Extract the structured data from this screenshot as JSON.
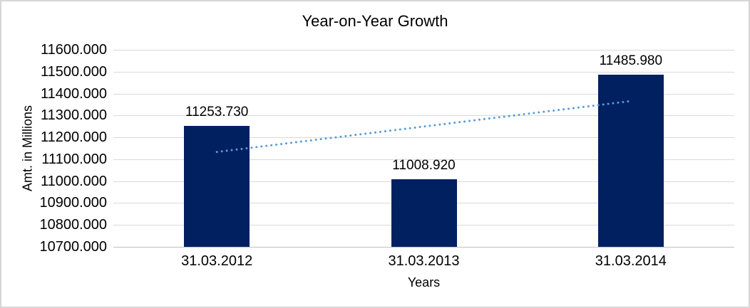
{
  "frame": {
    "background": "#ffffff",
    "border_color": "#d6d6d6"
  },
  "chart_data": {
    "type": "bar",
    "title": "Year-on-Year Growth",
    "xlabel": "Years",
    "ylabel": "Amt. in Millions",
    "categories": [
      "31.03.2012",
      "31.03.2013",
      "31.03.2014"
    ],
    "values": [
      11253.73,
      11008.92,
      11485.98
    ],
    "data_labels": [
      "11253.730",
      "11008.920",
      "11485.980"
    ],
    "ylim": [
      10700,
      11600
    ],
    "ytick_step": 100,
    "ytick_labels": [
      "11600.000",
      "11500.000",
      "11400.000",
      "11300.000",
      "11200.000",
      "11100.000",
      "11000.000",
      "10900.000",
      "10800.000",
      "10700.000"
    ],
    "grid": true,
    "legend": false,
    "colors": {
      "bar": "#002060",
      "trendline": "#5b9bd5",
      "gridline": "#d9d9d9",
      "axis_line": "#bfbfbf",
      "text": "#000000"
    },
    "trendline": {
      "type": "linear",
      "style": "dotted",
      "start_value": 11133.4,
      "end_value": 11365.7
    }
  }
}
